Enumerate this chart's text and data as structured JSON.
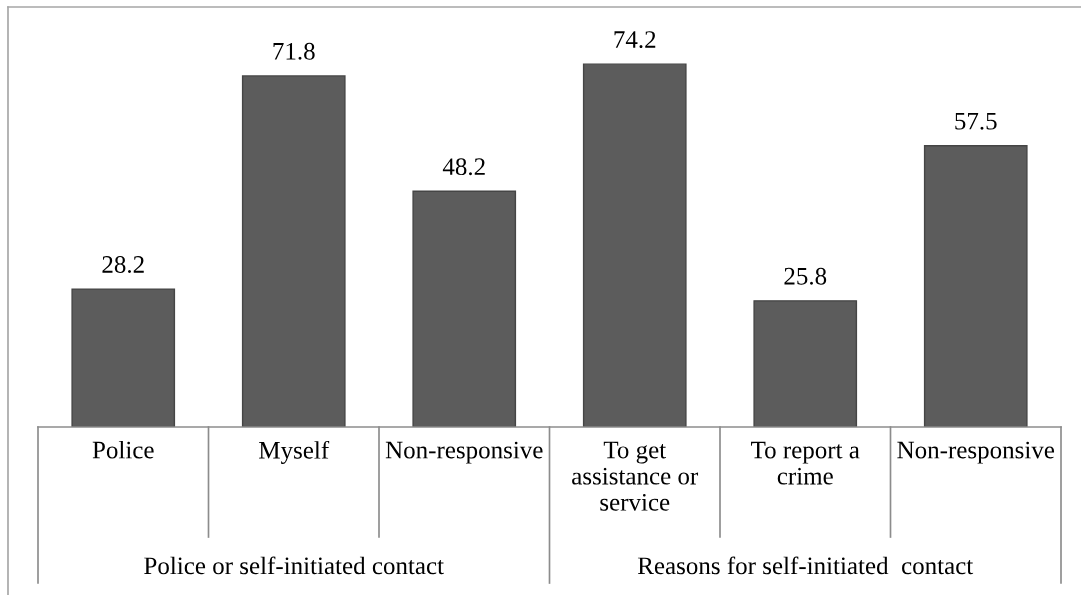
{
  "chart_data": {
    "type": "bar",
    "categories": [
      "Police",
      "Myself",
      "Non-responsive",
      "To get assistance or service",
      "To report a crime",
      "Non-responsive"
    ],
    "values": [
      28.2,
      71.8,
      48.2,
      74.2,
      25.8,
      57.5
    ],
    "color": "#5c5c5c",
    "data_labels": true,
    "annotations": [
      "Police or self-initiated contact",
      "Reasons for self-initiated  contact"
    ]
  }
}
